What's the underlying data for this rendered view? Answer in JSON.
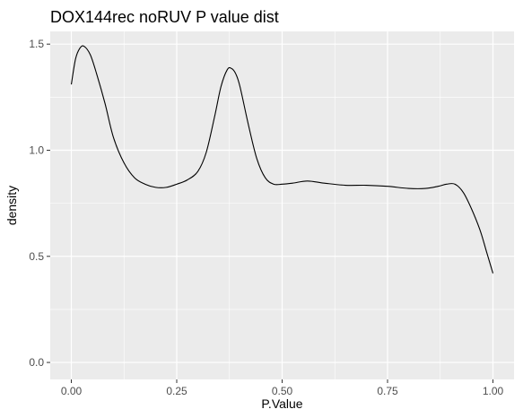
{
  "chart_data": {
    "type": "line",
    "title": "DOX144rec noRUV P value dist",
    "xlabel": "P.Value",
    "ylabel": "density",
    "xlim": [
      -0.05,
      1.05
    ],
    "ylim": [
      -0.08,
      1.56
    ],
    "xticks": [
      0.0,
      0.25,
      0.5,
      0.75,
      1.0
    ],
    "xtick_labels": [
      "0.00",
      "0.25",
      "0.50",
      "0.75",
      "1.00"
    ],
    "yticks": [
      0.0,
      0.5,
      1.0,
      1.5
    ],
    "ytick_labels": [
      "0.0",
      "0.5",
      "1.0",
      "1.5"
    ],
    "grid": true,
    "legend": "none",
    "colors": {
      "panel": "#ebebeb",
      "grid": "#ffffff",
      "line": "#000000"
    },
    "series": [
      {
        "x": [
          0.0,
          0.01,
          0.02,
          0.03,
          0.045,
          0.06,
          0.08,
          0.1,
          0.125,
          0.15,
          0.175,
          0.2,
          0.225,
          0.25,
          0.275,
          0.3,
          0.32,
          0.34,
          0.355,
          0.37,
          0.38,
          0.39,
          0.4,
          0.42,
          0.44,
          0.46,
          0.48,
          0.5,
          0.525,
          0.56,
          0.6,
          0.65,
          0.7,
          0.75,
          0.8,
          0.84,
          0.87,
          0.89,
          0.91,
          0.93,
          0.95,
          0.97,
          0.985,
          1.0
        ],
        "y": [
          1.31,
          1.43,
          1.48,
          1.49,
          1.45,
          1.36,
          1.22,
          1.06,
          0.94,
          0.87,
          0.84,
          0.825,
          0.825,
          0.84,
          0.86,
          0.9,
          0.99,
          1.16,
          1.3,
          1.38,
          1.385,
          1.36,
          1.3,
          1.12,
          0.96,
          0.87,
          0.84,
          0.84,
          0.845,
          0.855,
          0.845,
          0.835,
          0.835,
          0.83,
          0.82,
          0.82,
          0.83,
          0.84,
          0.84,
          0.8,
          0.72,
          0.62,
          0.52,
          0.42
        ]
      }
    ]
  }
}
